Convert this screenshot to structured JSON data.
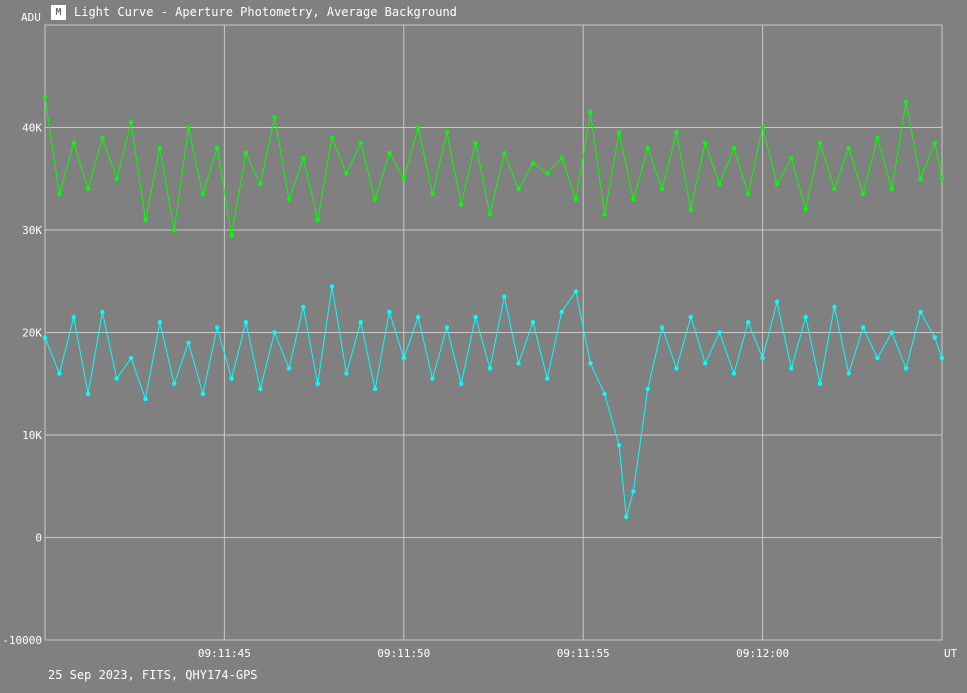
{
  "window": {
    "title": "Light Curve - Aperture Photometry, Average Background",
    "icon": "light-curve-icon"
  },
  "footer": {
    "text": "25 Sep 2023, FITS, QHY174-GPS"
  },
  "colors": {
    "background": "#808080",
    "grid": "#c8c8c8",
    "comparison_series": "#00ff00",
    "target_series": "#00ffff"
  },
  "chart_data": {
    "type": "line",
    "ylabel": "ADU",
    "xlabel": "UT",
    "ylim": [
      -10000,
      50000
    ],
    "y_ticks": [
      -10000,
      0,
      10000,
      20000,
      30000,
      40000
    ],
    "y_tick_labels": [
      "-10000",
      "0",
      "10K",
      "20K",
      "30K",
      "40K"
    ],
    "xlim": [
      "09:11:40",
      "09:12:05"
    ],
    "x_tick_labels": [
      "09:11:45",
      "09:11:50",
      "09:11:55",
      "09:12:00"
    ],
    "grid": true,
    "legend": "none",
    "series": [
      {
        "color": "#00ff00",
        "points": [
          [
            "09:11:40.0",
            43000
          ],
          [
            "09:11:40.4",
            33500
          ],
          [
            "09:11:40.8",
            38500
          ],
          [
            "09:11:41.2",
            34000
          ],
          [
            "09:11:41.6",
            39000
          ],
          [
            "09:11:42.0",
            35000
          ],
          [
            "09:11:42.4",
            40500
          ],
          [
            "09:11:42.8",
            31000
          ],
          [
            "09:11:43.2",
            38000
          ],
          [
            "09:11:43.6",
            30000
          ],
          [
            "09:11:44.0",
            40000
          ],
          [
            "09:11:44.4",
            33500
          ],
          [
            "09:11:44.8",
            38000
          ],
          [
            "09:11:45.2",
            29500
          ],
          [
            "09:11:45.6",
            37500
          ],
          [
            "09:11:46.0",
            34500
          ],
          [
            "09:11:46.4",
            41000
          ],
          [
            "09:11:46.8",
            33000
          ],
          [
            "09:11:47.2",
            37000
          ],
          [
            "09:11:47.6",
            31000
          ],
          [
            "09:11:48.0",
            39000
          ],
          [
            "09:11:48.4",
            35500
          ],
          [
            "09:11:48.8",
            38500
          ],
          [
            "09:11:49.2",
            33000
          ],
          [
            "09:11:49.6",
            37500
          ],
          [
            "09:11:50.0",
            35000
          ],
          [
            "09:11:50.4",
            40000
          ],
          [
            "09:11:50.8",
            33500
          ],
          [
            "09:11:51.2",
            39500
          ],
          [
            "09:11:51.6",
            32500
          ],
          [
            "09:11:52.0",
            38500
          ],
          [
            "09:11:52.4",
            31500
          ],
          [
            "09:11:52.8",
            37500
          ],
          [
            "09:11:53.2",
            34000
          ],
          [
            "09:11:53.6",
            36500
          ],
          [
            "09:11:54.0",
            35500
          ],
          [
            "09:11:54.4",
            37000
          ],
          [
            "09:11:54.8",
            33000
          ],
          [
            "09:11:55.2",
            41500
          ],
          [
            "09:11:55.6",
            31500
          ],
          [
            "09:11:56.0",
            39500
          ],
          [
            "09:11:56.4",
            33000
          ],
          [
            "09:11:56.8",
            38000
          ],
          [
            "09:11:57.2",
            34000
          ],
          [
            "09:11:57.6",
            39500
          ],
          [
            "09:11:58.0",
            32000
          ],
          [
            "09:11:58.4",
            38500
          ],
          [
            "09:11:58.8",
            34500
          ],
          [
            "09:11:59.2",
            38000
          ],
          [
            "09:11:59.6",
            33500
          ],
          [
            "09:12:00.0",
            40000
          ],
          [
            "09:12:00.4",
            34500
          ],
          [
            "09:12:00.8",
            37000
          ],
          [
            "09:12:01.2",
            32000
          ],
          [
            "09:12:01.6",
            38500
          ],
          [
            "09:12:02.0",
            34000
          ],
          [
            "09:12:02.4",
            38000
          ],
          [
            "09:12:02.8",
            33500
          ],
          [
            "09:12:03.2",
            39000
          ],
          [
            "09:12:03.6",
            34000
          ],
          [
            "09:12:04.0",
            42500
          ],
          [
            "09:12:04.4",
            35000
          ],
          [
            "09:12:04.8",
            38500
          ],
          [
            "09:12:05.0",
            35000
          ]
        ]
      },
      {
        "color": "#00ffff",
        "points": [
          [
            "09:11:40.0",
            19500
          ],
          [
            "09:11:40.4",
            16000
          ],
          [
            "09:11:40.8",
            21500
          ],
          [
            "09:11:41.2",
            14000
          ],
          [
            "09:11:41.6",
            22000
          ],
          [
            "09:11:42.0",
            15500
          ],
          [
            "09:11:42.4",
            17500
          ],
          [
            "09:11:42.8",
            13500
          ],
          [
            "09:11:43.2",
            21000
          ],
          [
            "09:11:43.6",
            15000
          ],
          [
            "09:11:44.0",
            19000
          ],
          [
            "09:11:44.4",
            14000
          ],
          [
            "09:11:44.8",
            20500
          ],
          [
            "09:11:45.2",
            15500
          ],
          [
            "09:11:45.6",
            21000
          ],
          [
            "09:11:46.0",
            14500
          ],
          [
            "09:11:46.4",
            20000
          ],
          [
            "09:11:46.8",
            16500
          ],
          [
            "09:11:47.2",
            22500
          ],
          [
            "09:11:47.6",
            15000
          ],
          [
            "09:11:48.0",
            24500
          ],
          [
            "09:11:48.4",
            16000
          ],
          [
            "09:11:48.8",
            21000
          ],
          [
            "09:11:49.2",
            14500
          ],
          [
            "09:11:49.6",
            22000
          ],
          [
            "09:11:50.0",
            17500
          ],
          [
            "09:11:50.4",
            21500
          ],
          [
            "09:11:50.8",
            15500
          ],
          [
            "09:11:51.2",
            20500
          ],
          [
            "09:11:51.6",
            15000
          ],
          [
            "09:11:52.0",
            21500
          ],
          [
            "09:11:52.4",
            16500
          ],
          [
            "09:11:52.8",
            23500
          ],
          [
            "09:11:53.2",
            17000
          ],
          [
            "09:11:53.6",
            21000
          ],
          [
            "09:11:54.0",
            15500
          ],
          [
            "09:11:54.4",
            22000
          ],
          [
            "09:11:54.8",
            24000
          ],
          [
            "09:11:55.2",
            17000
          ],
          [
            "09:11:55.6",
            14000
          ],
          [
            "09:11:56.0",
            9000
          ],
          [
            "09:11:56.2",
            2000
          ],
          [
            "09:11:56.4",
            4500
          ],
          [
            "09:11:56.8",
            14500
          ],
          [
            "09:11:57.2",
            20500
          ],
          [
            "09:11:57.6",
            16500
          ],
          [
            "09:11:58.0",
            21500
          ],
          [
            "09:11:58.4",
            17000
          ],
          [
            "09:11:58.8",
            20000
          ],
          [
            "09:11:59.2",
            16000
          ],
          [
            "09:11:59.6",
            21000
          ],
          [
            "09:12:00.0",
            17500
          ],
          [
            "09:12:00.4",
            23000
          ],
          [
            "09:12:00.8",
            16500
          ],
          [
            "09:12:01.2",
            21500
          ],
          [
            "09:12:01.6",
            15000
          ],
          [
            "09:12:02.0",
            22500
          ],
          [
            "09:12:02.4",
            16000
          ],
          [
            "09:12:02.8",
            20500
          ],
          [
            "09:12:03.2",
            17500
          ],
          [
            "09:12:03.6",
            20000
          ],
          [
            "09:12:04.0",
            16500
          ],
          [
            "09:12:04.4",
            22000
          ],
          [
            "09:12:04.8",
            19500
          ],
          [
            "09:12:05.0",
            17500
          ]
        ]
      }
    ]
  }
}
